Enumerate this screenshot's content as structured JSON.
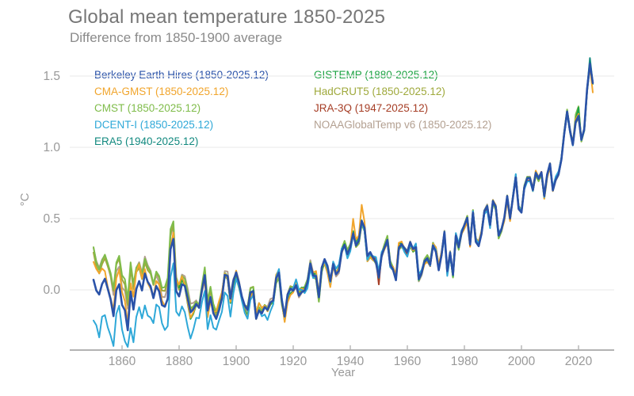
{
  "chart_data": {
    "type": "line",
    "title": "Global mean temperature 1850-2025",
    "subtitle": "Difference from 1850-1900 average",
    "xlabel": "Year",
    "ylabel": "°C",
    "x_ticks": [
      1860,
      1880,
      1900,
      1920,
      1940,
      1960,
      1980,
      2000,
      2020
    ],
    "y_ticks": [
      0.0,
      0.5,
      1.0,
      1.5
    ],
    "x_range": [
      1850,
      2025
    ],
    "y_range": [
      -0.45,
      1.65
    ],
    "grid": "horizontal-only",
    "legend_position": "top-left-two-columns-colored-text",
    "style": {
      "background": "#ffffff",
      "title_color": "#767676",
      "subtitle_color": "#8a8a8a",
      "axis_color": "#b3b3b3",
      "grid_color": "#ededed",
      "tick_label_color": "#999999"
    },
    "years_start": 1850,
    "years_end": 2025,
    "ensemble_mean": [
      0.12,
      0.05,
      0.02,
      0.08,
      0.1,
      0.02,
      -0.05,
      -0.15,
      0.05,
      0.1,
      -0.05,
      -0.1,
      -0.25,
      0.02,
      -0.1,
      0.05,
      0.1,
      0.02,
      0.12,
      0.05,
      0.02,
      -0.05,
      0.05,
      0.02,
      -0.08,
      -0.1,
      -0.05,
      0.3,
      0.38,
      0.02,
      -0.02,
      0.05,
      0.02,
      -0.08,
      -0.18,
      -0.15,
      -0.1,
      -0.12,
      0.0,
      0.1,
      -0.15,
      -0.05,
      -0.15,
      -0.18,
      -0.12,
      -0.05,
      0.1,
      0.08,
      -0.08,
      0.05,
      0.12,
      0.05,
      -0.05,
      -0.12,
      -0.15,
      -0.02,
      0.0,
      -0.18,
      -0.12,
      -0.15,
      -0.12,
      -0.15,
      -0.1,
      -0.08,
      0.08,
      0.12,
      -0.08,
      -0.2,
      -0.05,
      0.0,
      0.0,
      0.05,
      -0.02,
      0.0,
      0.0,
      0.05,
      0.18,
      0.1,
      0.1,
      -0.05,
      0.15,
      0.2,
      0.15,
      0.05,
      0.18,
      0.12,
      0.15,
      0.28,
      0.32,
      0.25,
      0.3,
      0.4,
      0.32,
      0.35,
      0.48,
      0.42,
      0.22,
      0.25,
      0.22,
      0.2,
      0.1,
      0.25,
      0.3,
      0.35,
      0.18,
      0.15,
      0.08,
      0.3,
      0.32,
      0.28,
      0.25,
      0.32,
      0.28,
      0.3,
      0.08,
      0.12,
      0.2,
      0.22,
      0.18,
      0.32,
      0.28,
      0.15,
      0.25,
      0.4,
      0.12,
      0.25,
      0.1,
      0.38,
      0.3,
      0.4,
      0.45,
      0.5,
      0.32,
      0.55,
      0.35,
      0.32,
      0.4,
      0.55,
      0.58,
      0.45,
      0.62,
      0.58,
      0.38,
      0.42,
      0.5,
      0.65,
      0.5,
      0.65,
      0.8,
      0.58,
      0.55,
      0.72,
      0.78,
      0.78,
      0.7,
      0.82,
      0.78,
      0.82,
      0.65,
      0.8,
      0.88,
      0.7,
      0.78,
      0.82,
      0.92,
      1.1,
      1.25,
      1.12,
      1.02,
      1.18,
      1.22,
      1.05,
      1.12,
      1.4,
      1.58,
      1.45
    ],
    "series": [
      {
        "name": "Berkeley Earth Hires",
        "legend": "Berkeley Earth Hires (1850-2025.12)",
        "color": "#2a52a8",
        "start_year": 1850,
        "end_label": "2025.12",
        "width": 2.6,
        "early_offset": -0.05,
        "taper_end": 1885,
        "amp": 0.03,
        "seed": 1,
        "z": 9,
        "extra": {}
      },
      {
        "name": "CMA-GMST",
        "legend": "CMA-GMST (1850-2025.12)",
        "color": "#f1a52c",
        "start_year": 1850,
        "end_label": "2025.12",
        "width": 2.0,
        "early_offset": 0.05,
        "taper_end": 1885,
        "amp": 0.055,
        "seed": 2,
        "z": 5,
        "extra": {
          "1941": 0.08,
          "1944": 0.1,
          "1945": 0.06,
          "2025": -0.06
        }
      },
      {
        "name": "CMST",
        "legend": "CMST (1850-2025.12)",
        "color": "#7fbc4a",
        "start_year": 1850,
        "end_label": "2025.12",
        "width": 2.0,
        "early_offset": 0.18,
        "taper_end": 1900,
        "amp": 0.05,
        "seed": 3,
        "z": 3,
        "extra": {
          "2019": 0.06,
          "2020": 0.08
        }
      },
      {
        "name": "DCENT-I",
        "legend": "DCENT-I (1850-2025.12)",
        "color": "#2ea8d8",
        "start_year": 1850,
        "end_label": "2025.12",
        "width": 2.0,
        "early_offset": -0.3,
        "taper_end": 1915,
        "amp": 0.055,
        "seed": 4,
        "z": 7,
        "extra": {
          "1852": -0.08,
          "1862": -0.06
        }
      },
      {
        "name": "ERA5",
        "legend": "ERA5 (1940-2025.12)",
        "color": "#12897f",
        "start_year": 1940,
        "end_label": "2025.12",
        "width": 2.0,
        "early_offset": 0,
        "taper_end": 1940,
        "amp": 0.035,
        "seed": 5,
        "z": 8,
        "extra": {
          "2024": 0.04
        }
      },
      {
        "name": "GISTEMP",
        "legend": "GISTEMP (1880-2025.12)",
        "color": "#1ea344",
        "start_year": 1880,
        "end_label": "2025.12",
        "width": 2.0,
        "early_offset": 0,
        "taper_end": 1880,
        "amp": 0.04,
        "seed": 6,
        "z": 4,
        "extra": {
          "2020": 0.05
        }
      },
      {
        "name": "HadCRUT5",
        "legend": "HadCRUT5 (1850-2025.12)",
        "color": "#9fa93c",
        "start_year": 1850,
        "end_label": "2025.12",
        "width": 2.0,
        "early_offset": 0.15,
        "taper_end": 1895,
        "amp": 0.045,
        "seed": 7,
        "z": 2,
        "extra": {}
      },
      {
        "name": "JRA-3Q",
        "legend": "JRA-3Q (1947-2025.12)",
        "color": "#a63e26",
        "start_year": 1947,
        "end_label": "2025.12",
        "width": 2.0,
        "early_offset": 0,
        "taper_end": 1947,
        "amp": 0.04,
        "seed": 8,
        "z": 6,
        "extra": {
          "1950": -0.08
        }
      },
      {
        "name": "NOAAGlobalTemp v6",
        "legend": "NOAAGlobalTemp v6 (1850-2025.12)",
        "color": "#b3a091",
        "start_year": 1850,
        "end_label": "2025.12",
        "width": 2.0,
        "early_offset": 0.14,
        "taper_end": 1900,
        "amp": 0.05,
        "seed": 9,
        "z": 1,
        "extra": {}
      }
    ]
  }
}
